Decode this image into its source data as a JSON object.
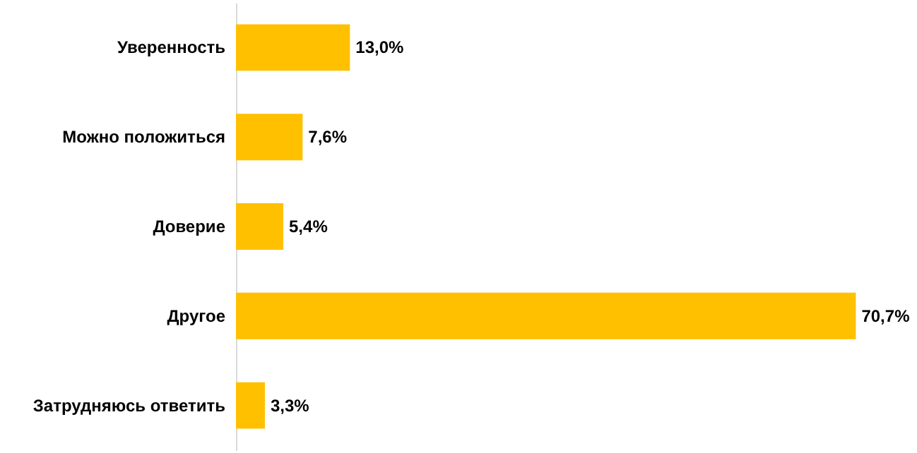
{
  "chart_data": {
    "type": "bar",
    "orientation": "horizontal",
    "categories": [
      "Уверенность",
      "Можно положиться",
      "Доверие",
      "Другое",
      "Затрудняюсь ответить"
    ],
    "values": [
      13.0,
      7.6,
      5.4,
      70.7,
      3.3
    ],
    "value_labels": [
      "13,0%",
      "7,6%",
      "5,4%",
      "70,7%",
      "3,3%"
    ],
    "color": "#ffc000"
  }
}
